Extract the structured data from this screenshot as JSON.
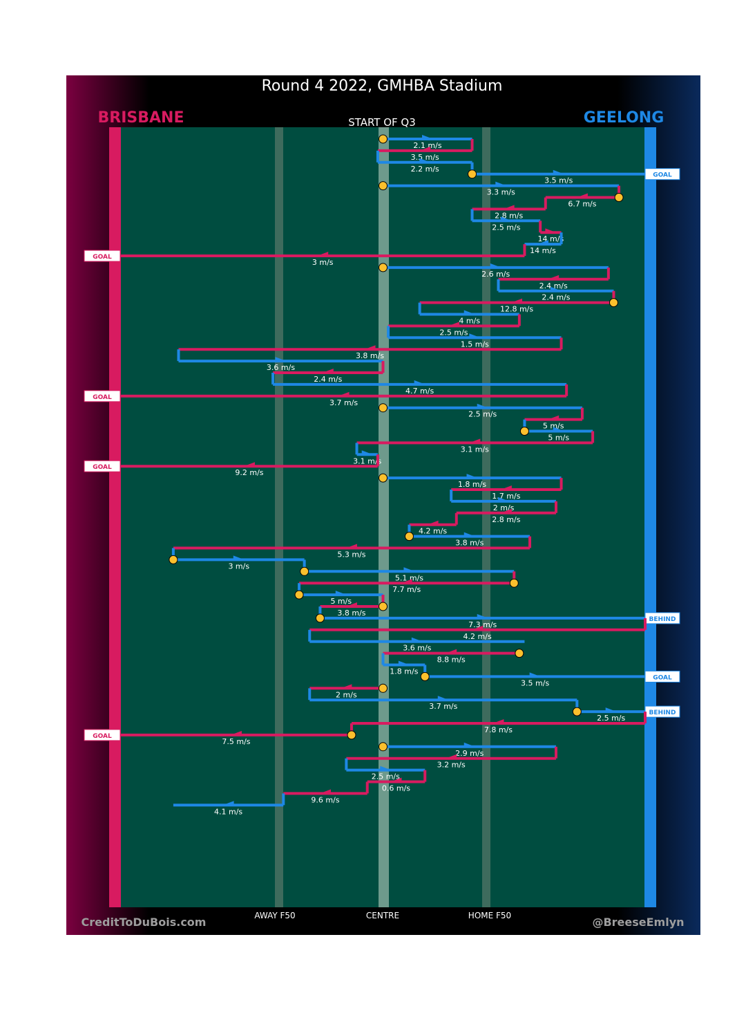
{
  "title": "Round 4 2022, GMHBA Stadium",
  "teams": {
    "away": "BRISBANE",
    "home": "GEELONG"
  },
  "subtitle": "START OF Q3",
  "credits": {
    "left": "CreditToDuBois.com",
    "right": "@BreeseEmlyn"
  },
  "axis_labels": [
    "AWAY F50",
    "CENTRE",
    "HOME F50"
  ],
  "outcome_labels": {
    "goal": "GOAL",
    "behind": "BEHIND"
  },
  "colors": {
    "brisbane": "#d81b60",
    "geelong": "#1e88e5",
    "ground": "#004d40",
    "stoppage": "#fbc02d",
    "left_bg": "#7b0040",
    "right_bg": "#0a2a5c"
  },
  "chart_data": {
    "type": "line",
    "description": "Ball movement chains down the ground (x = ground position, 0 = Brisbane goal line, 50 = centre, 100 = Geelong goal line); each row is one chain segment with its speed",
    "x_range": [
      0,
      100
    ],
    "reference_lines": [
      {
        "name": "AWAY F50",
        "x": 30
      },
      {
        "name": "CENTRE",
        "x": 50
      },
      {
        "name": "HOME F50",
        "x": 70
      }
    ],
    "segments": [
      {
        "team": "geelong",
        "from": 50,
        "to": 67,
        "speed": "2.1 m/s",
        "stoppage": true
      },
      {
        "team": "brisbane",
        "from": 67,
        "to": 49,
        "speed": "3.5 m/s"
      },
      {
        "team": "geelong",
        "from": 49,
        "to": 67,
        "speed": "2.2 m/s"
      },
      {
        "team": "geelong",
        "from": 67,
        "to": 100,
        "speed": "3.5 m/s",
        "stoppage": true,
        "outcome": "GOAL"
      },
      {
        "team": "geelong",
        "from": 50,
        "to": 95,
        "speed": "3.3 m/s",
        "stoppage": true
      },
      {
        "team": "brisbane",
        "from": 95,
        "to": 81,
        "speed": "6.7 m/s",
        "stoppage": true
      },
      {
        "team": "brisbane",
        "from": 81,
        "to": 67,
        "speed": "2.8 m/s"
      },
      {
        "team": "geelong",
        "from": 67,
        "to": 80,
        "speed": "2.5 m/s"
      },
      {
        "team": "brisbane",
        "from": 80,
        "to": 84,
        "speed": "14 m/s"
      },
      {
        "team": "geelong",
        "from": 84,
        "to": 77,
        "speed": "14 m/s"
      },
      {
        "team": "brisbane",
        "from": 77,
        "to": 0,
        "speed": "3 m/s",
        "outcome": "GOAL"
      },
      {
        "team": "geelong",
        "from": 50,
        "to": 93,
        "speed": "2.6 m/s",
        "stoppage": true
      },
      {
        "team": "brisbane",
        "from": 93,
        "to": 72,
        "speed": "2.4 m/s"
      },
      {
        "team": "geelong",
        "from": 72,
        "to": 94,
        "speed": "2.4 m/s"
      },
      {
        "team": "brisbane",
        "from": 94,
        "to": 57,
        "speed": "12.8 m/s",
        "stoppage": true
      },
      {
        "team": "geelong",
        "from": 57,
        "to": 76,
        "speed": "4 m/s"
      },
      {
        "team": "brisbane",
        "from": 76,
        "to": 51,
        "speed": "2.5 m/s"
      },
      {
        "team": "geelong",
        "from": 51,
        "to": 84,
        "speed": "1.5 m/s"
      },
      {
        "team": "brisbane",
        "from": 84,
        "to": 11,
        "speed": "3.8 m/s"
      },
      {
        "team": "geelong",
        "from": 11,
        "to": 50,
        "speed": "3.6 m/s"
      },
      {
        "team": "brisbane",
        "from": 50,
        "to": 29,
        "speed": "2.4 m/s"
      },
      {
        "team": "geelong",
        "from": 29,
        "to": 85,
        "speed": "4.7 m/s"
      },
      {
        "team": "brisbane",
        "from": 85,
        "to": 0,
        "speed": "3.7 m/s",
        "outcome": "GOAL"
      },
      {
        "team": "geelong",
        "from": 50,
        "to": 88,
        "speed": "2.5 m/s",
        "stoppage": true
      },
      {
        "team": "brisbane",
        "from": 88,
        "to": 77,
        "speed": "5 m/s"
      },
      {
        "team": "geelong",
        "from": 77,
        "to": 90,
        "speed": "5 m/s",
        "stoppage": true
      },
      {
        "team": "brisbane",
        "from": 90,
        "to": 45,
        "speed": "3.1 m/s"
      },
      {
        "team": "geelong",
        "from": 45,
        "to": 49,
        "speed": "3.1 m/s"
      },
      {
        "team": "brisbane",
        "from": 49,
        "to": 0,
        "speed": "9.2 m/s",
        "outcome": "GOAL"
      },
      {
        "team": "geelong",
        "from": 50,
        "to": 84,
        "speed": "1.8 m/s",
        "stoppage": true
      },
      {
        "team": "brisbane",
        "from": 84,
        "to": 63,
        "speed": "1.7 m/s"
      },
      {
        "team": "geelong",
        "from": 63,
        "to": 83,
        "speed": "2 m/s"
      },
      {
        "team": "brisbane",
        "from": 83,
        "to": 64,
        "speed": "2.8 m/s"
      },
      {
        "team": "brisbane",
        "from": 64,
        "to": 55,
        "speed": "4.2 m/s"
      },
      {
        "team": "geelong",
        "from": 55,
        "to": 78,
        "speed": "3.8 m/s",
        "stoppage": true
      },
      {
        "team": "brisbane",
        "from": 78,
        "to": 10,
        "speed": "5.3 m/s"
      },
      {
        "team": "geelong",
        "from": 10,
        "to": 35,
        "speed": "3 m/s",
        "stoppage": true
      },
      {
        "team": "geelong",
        "from": 35,
        "to": 75,
        "speed": "5.1 m/s",
        "stoppage": true
      },
      {
        "team": "brisbane",
        "from": 75,
        "to": 34,
        "speed": "7.7 m/s",
        "stoppage": true
      },
      {
        "team": "geelong",
        "from": 34,
        "to": 50,
        "speed": "5 m/s",
        "stoppage": true
      },
      {
        "team": "brisbane",
        "from": 50,
        "to": 38,
        "speed": "3.8 m/s",
        "stoppage": true
      },
      {
        "team": "geelong",
        "from": 38,
        "to": 100,
        "speed": "7.3 m/s",
        "stoppage": true,
        "outcome": "BEHIND"
      },
      {
        "team": "brisbane",
        "from": 100,
        "to": 36,
        "speed": "4.2 m/s"
      },
      {
        "team": "geelong",
        "from": 36,
        "to": 77,
        "speed": "3.6 m/s"
      },
      {
        "team": "brisbane",
        "from": 76,
        "to": 50,
        "speed": "8.8 m/s",
        "stoppage": true
      },
      {
        "team": "geelong",
        "from": 50,
        "to": 58,
        "speed": "1.8 m/s"
      },
      {
        "team": "geelong",
        "from": 58,
        "to": 100,
        "speed": "3.5 m/s",
        "stoppage": true,
        "outcome": "GOAL"
      },
      {
        "team": "brisbane",
        "from": 50,
        "to": 36,
        "speed": "2 m/s",
        "stoppage": true
      },
      {
        "team": "geelong",
        "from": 36,
        "to": 87,
        "speed": "3.7 m/s"
      },
      {
        "team": "geelong",
        "from": 87,
        "to": 100,
        "speed": "2.5 m/s",
        "stoppage": true,
        "outcome": "BEHIND"
      },
      {
        "team": "brisbane",
        "from": 100,
        "to": 44,
        "speed": "7.8 m/s"
      },
      {
        "team": "brisbane",
        "from": 44,
        "to": 0,
        "speed": "7.5 m/s",
        "stoppage": true,
        "outcome": "GOAL"
      },
      {
        "team": "geelong",
        "from": 50,
        "to": 83,
        "speed": "2.9 m/s",
        "stoppage": true
      },
      {
        "team": "brisbane",
        "from": 83,
        "to": 43,
        "speed": "3.2 m/s"
      },
      {
        "team": "geelong",
        "from": 43,
        "to": 58,
        "speed": "2.5 m/s"
      },
      {
        "team": "brisbane",
        "from": 58,
        "to": 47,
        "speed": "0.6 m/s"
      },
      {
        "team": "brisbane",
        "from": 47,
        "to": 31,
        "speed": "9.6 m/s"
      },
      {
        "team": "geelong",
        "from": 31,
        "to": 10,
        "speed": "4.1 m/s"
      }
    ]
  }
}
